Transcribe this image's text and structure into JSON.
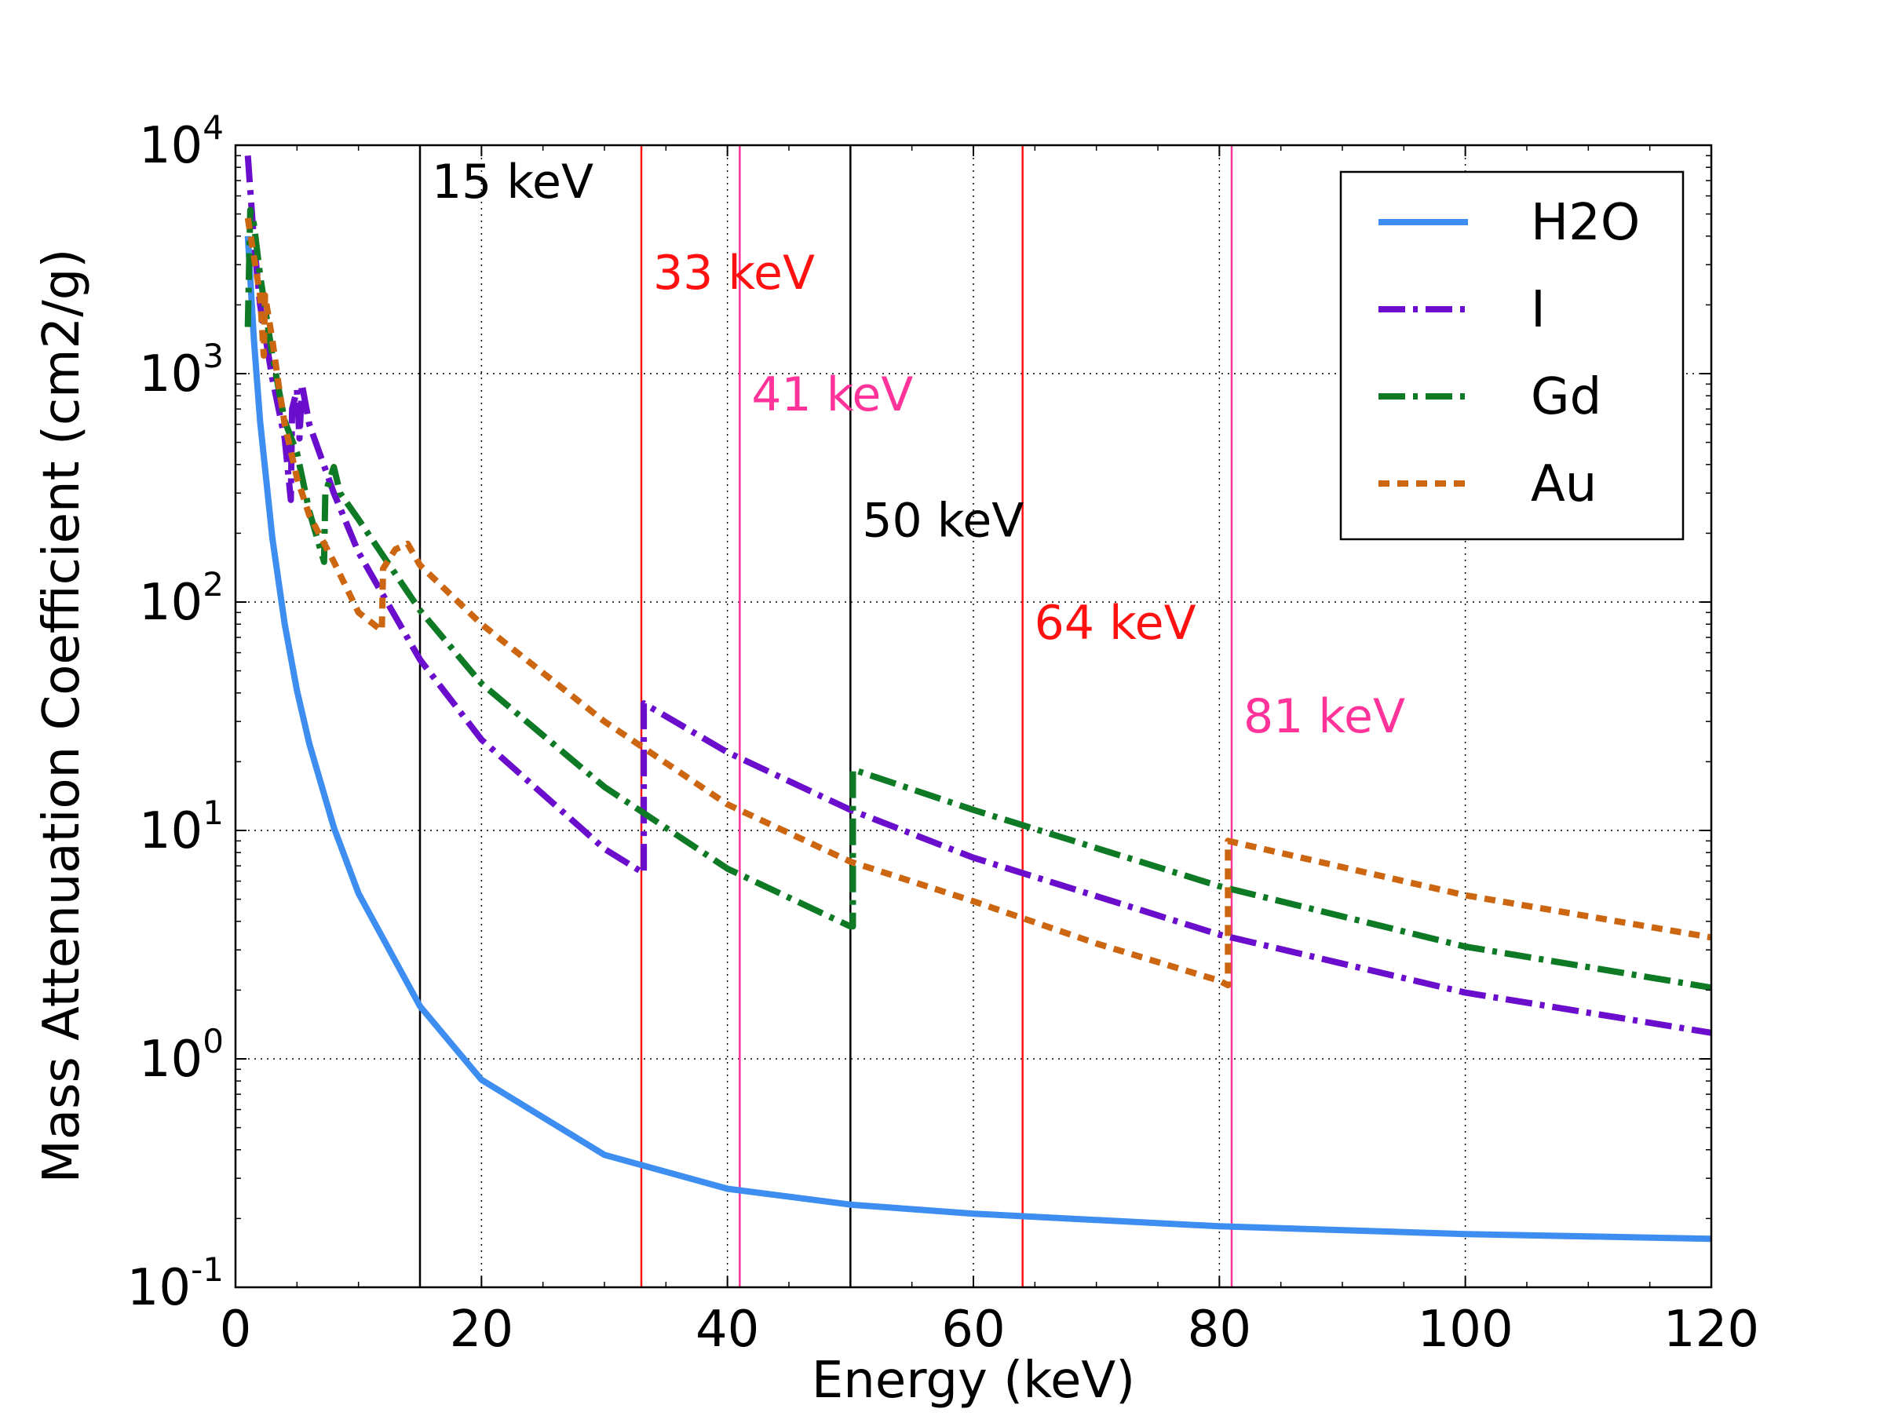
{
  "chart_data": {
    "type": "line",
    "title": "",
    "xlabel": "Energy (keV)",
    "ylabel": "Mass Attenuation Coefficient (cm2/g)",
    "xlim": [
      0,
      120
    ],
    "ylim": [
      0.1,
      10000
    ],
    "yscale": "log",
    "grid": true,
    "legend_position": "top-right",
    "x_ticks": [
      0,
      20,
      40,
      60,
      80,
      100,
      120
    ],
    "y_ticks": [
      {
        "value": 0.1,
        "base": "10",
        "exp": "-1"
      },
      {
        "value": 1,
        "base": "10",
        "exp": "0"
      },
      {
        "value": 10,
        "base": "10",
        "exp": "1"
      },
      {
        "value": 100,
        "base": "10",
        "exp": "2"
      },
      {
        "value": 1000,
        "base": "10",
        "exp": "3"
      },
      {
        "value": 10000,
        "base": "10",
        "exp": "4"
      }
    ],
    "series": [
      {
        "name": "H2O",
        "color": "#3d8ef0",
        "style": "solid",
        "points": [
          [
            1,
            4000
          ],
          [
            1.5,
            1400
          ],
          [
            2,
            620
          ],
          [
            3,
            190
          ],
          [
            4,
            80
          ],
          [
            5,
            41
          ],
          [
            6,
            24
          ],
          [
            8,
            10.3
          ],
          [
            10,
            5.3
          ],
          [
            15,
            1.7
          ],
          [
            20,
            0.81
          ],
          [
            30,
            0.38
          ],
          [
            40,
            0.27
          ],
          [
            50,
            0.23
          ],
          [
            60,
            0.21
          ],
          [
            80,
            0.185
          ],
          [
            100,
            0.171
          ],
          [
            120,
            0.163
          ]
        ]
      },
      {
        "name": "I",
        "color": "#6a0dcc",
        "style": "dashdot",
        "points": [
          [
            1,
            9000
          ],
          [
            1.5,
            3800
          ],
          [
            2,
            2000
          ],
          [
            3,
            950
          ],
          [
            4,
            520
          ],
          [
            4.5,
            280
          ],
          [
            4.6,
            700
          ],
          [
            5,
            850
          ],
          [
            5.2,
            520
          ],
          [
            5.4,
            900
          ],
          [
            6,
            600
          ],
          [
            8,
            300
          ],
          [
            10,
            165
          ],
          [
            15,
            56
          ],
          [
            20,
            25
          ],
          [
            30,
            8.3
          ],
          [
            33.2,
            6.5
          ],
          [
            33.2,
            36
          ],
          [
            40,
            22
          ],
          [
            50,
            12.3
          ],
          [
            60,
            7.6
          ],
          [
            80,
            3.5
          ],
          [
            100,
            1.95
          ],
          [
            120,
            1.3
          ]
        ]
      },
      {
        "name": "Gd",
        "color": "#0f7a25",
        "style": "dashdot",
        "points": [
          [
            1,
            1600
          ],
          [
            1.2,
            5200
          ],
          [
            1.5,
            4500
          ],
          [
            2,
            2700
          ],
          [
            3,
            1200
          ],
          [
            4,
            620
          ],
          [
            5,
            450
          ],
          [
            6,
            250
          ],
          [
            7.2,
            150
          ],
          [
            7.3,
            300
          ],
          [
            8,
            390
          ],
          [
            8.5,
            300
          ],
          [
            10,
            230
          ],
          [
            15,
            92
          ],
          [
            20,
            44
          ],
          [
            30,
            15.5
          ],
          [
            40,
            6.8
          ],
          [
            50,
            3.8
          ],
          [
            50.2,
            3.8
          ],
          [
            50.2,
            18.5
          ],
          [
            60,
            12.3
          ],
          [
            80,
            5.7
          ],
          [
            100,
            3.1
          ],
          [
            120,
            2.05
          ]
        ]
      },
      {
        "name": "Au",
        "color": "#cc6611",
        "style": "dashed",
        "points": [
          [
            1,
            4800
          ],
          [
            2,
            2200
          ],
          [
            2.3,
            1200
          ],
          [
            2.4,
            2200
          ],
          [
            3,
            1400
          ],
          [
            3.5,
            900
          ],
          [
            4,
            600
          ],
          [
            5,
            350
          ],
          [
            6,
            240
          ],
          [
            8,
            150
          ],
          [
            10,
            90
          ],
          [
            11.9,
            75
          ],
          [
            12,
            140
          ],
          [
            13,
            170
          ],
          [
            14,
            180
          ],
          [
            15,
            145
          ],
          [
            20,
            80
          ],
          [
            30,
            30
          ],
          [
            40,
            13
          ],
          [
            50,
            7.3
          ],
          [
            60,
            4.9
          ],
          [
            70,
            3.2
          ],
          [
            80,
            2.2
          ],
          [
            80.7,
            2.1
          ],
          [
            80.7,
            9.0
          ],
          [
            100,
            5.2
          ],
          [
            120,
            3.4
          ]
        ]
      }
    ],
    "vertical_lines": [
      {
        "x": 15,
        "label": "15 keV",
        "color": "#000000",
        "label_y": 7000
      },
      {
        "x": 33,
        "label": "33 keV",
        "color": "#ff1111",
        "label_y": 2800
      },
      {
        "x": 41,
        "label": "41 keV",
        "color": "#ff3399",
        "label_y": 820
      },
      {
        "x": 50,
        "label": "50 keV",
        "color": "#000000",
        "label_y": 230
      },
      {
        "x": 64,
        "label": "64 keV",
        "color": "#ff1111",
        "label_y": 82
      },
      {
        "x": 81,
        "label": "81 keV",
        "color": "#ff3399",
        "label_y": 32
      }
    ]
  }
}
